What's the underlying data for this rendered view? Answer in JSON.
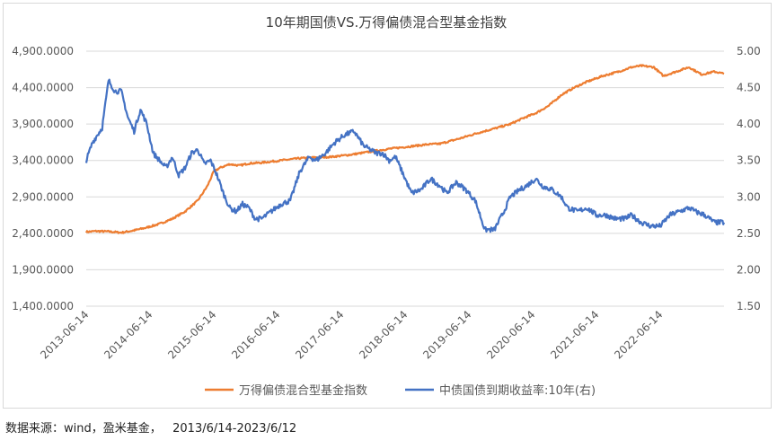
{
  "source_note": "数据来源：wind，盈米基金，   2013/6/14-2023/6/12",
  "colors": {
    "index_series": "#ed7d31",
    "yield_series": "#4472c4",
    "grid": "#d9d9d9",
    "text": "#595959"
  },
  "chart_data": {
    "type": "line",
    "title": "10年期国债VS.万得偏债混合型基金指数",
    "xlabel": "",
    "ylabel": "",
    "x_ticks": [
      "2013-06-14",
      "2014-06-14",
      "2015-06-14",
      "2016-06-14",
      "2017-06-14",
      "2018-06-14",
      "2019-06-14",
      "2020-06-14",
      "2021-06-14",
      "2022-06-14"
    ],
    "x_range": [
      2013.45,
      2023.45
    ],
    "y_left": {
      "ylim": [
        1400,
        4900
      ],
      "ticks": [
        "1,400.0000",
        "1,900.0000",
        "2,400.0000",
        "2,900.0000",
        "3,400.0000",
        "3,900.0000",
        "4,400.0000",
        "4,900.0000"
      ],
      "tick_values": [
        1400,
        1900,
        2400,
        2900,
        3400,
        3900,
        4400,
        4900
      ]
    },
    "y_right": {
      "ylim": [
        1.5,
        5.0
      ],
      "ticks": [
        "1.50",
        "2.00",
        "2.50",
        "3.00",
        "3.50",
        "4.00",
        "4.50",
        "5.00"
      ],
      "tick_values": [
        1.5,
        2.0,
        2.5,
        3.0,
        3.5,
        4.0,
        4.5,
        5.0
      ]
    },
    "grid": true,
    "legend": "bottom",
    "series": [
      {
        "name": "万得偏债混合型基金指数",
        "axis": "left",
        "x": [
          2013.45,
          2013.6,
          2013.8,
          2014.0,
          2014.2,
          2014.4,
          2014.6,
          2014.8,
          2015.0,
          2015.2,
          2015.35,
          2015.45,
          2015.55,
          2015.7,
          2015.85,
          2016.0,
          2016.2,
          2016.5,
          2016.8,
          2017.0,
          2017.3,
          2017.6,
          2017.9,
          2018.2,
          2018.5,
          2018.8,
          2019.0,
          2019.3,
          2019.6,
          2019.9,
          2020.1,
          2020.3,
          2020.5,
          2020.7,
          2020.9,
          2021.1,
          2021.3,
          2021.55,
          2021.8,
          2022.0,
          2022.15,
          2022.35,
          2022.5,
          2022.7,
          2022.9,
          2023.1,
          2023.3,
          2023.45
        ],
        "values": [
          2420,
          2430,
          2425,
          2410,
          2440,
          2480,
          2530,
          2600,
          2700,
          2850,
          3050,
          3250,
          3300,
          3350,
          3330,
          3360,
          3370,
          3400,
          3430,
          3440,
          3450,
          3480,
          3520,
          3560,
          3590,
          3620,
          3630,
          3700,
          3780,
          3850,
          3900,
          3980,
          4050,
          4150,
          4300,
          4400,
          4480,
          4560,
          4620,
          4680,
          4700,
          4680,
          4560,
          4620,
          4680,
          4580,
          4620,
          4590
        ]
      },
      {
        "name": "中债国债到期收益率:10年(右)",
        "axis": "right",
        "x": [
          2013.45,
          2013.55,
          2013.7,
          2013.8,
          2013.9,
          2014.0,
          2014.1,
          2014.2,
          2014.3,
          2014.4,
          2014.5,
          2014.6,
          2014.7,
          2014.8,
          2014.9,
          2015.0,
          2015.1,
          2015.2,
          2015.3,
          2015.4,
          2015.5,
          2015.6,
          2015.7,
          2015.8,
          2015.9,
          2016.0,
          2016.1,
          2016.2,
          2016.35,
          2016.5,
          2016.65,
          2016.8,
          2016.95,
          2017.05,
          2017.2,
          2017.35,
          2017.5,
          2017.65,
          2017.8,
          2017.9,
          2018.0,
          2018.1,
          2018.2,
          2018.3,
          2018.45,
          2018.55,
          2018.7,
          2018.85,
          2019.0,
          2019.1,
          2019.25,
          2019.4,
          2019.55,
          2019.7,
          2019.85,
          2020.0,
          2020.1,
          2020.25,
          2020.35,
          2020.5,
          2020.6,
          2020.75,
          2020.9,
          2021.0,
          2021.15,
          2021.3,
          2021.45,
          2021.6,
          2021.75,
          2021.9,
          2022.0,
          2022.15,
          2022.3,
          2022.45,
          2022.6,
          2022.75,
          2022.9,
          2023.0,
          2023.15,
          2023.3,
          2023.45
        ],
        "values": [
          3.5,
          3.75,
          3.95,
          4.6,
          4.45,
          4.45,
          4.1,
          3.9,
          4.2,
          4.0,
          3.6,
          3.5,
          3.4,
          3.55,
          3.3,
          3.4,
          3.6,
          3.65,
          3.45,
          3.5,
          3.3,
          3.05,
          2.85,
          2.8,
          2.9,
          2.85,
          2.7,
          2.7,
          2.8,
          2.9,
          2.95,
          3.35,
          3.55,
          3.5,
          3.6,
          3.75,
          3.85,
          3.9,
          3.7,
          3.65,
          3.6,
          3.6,
          3.5,
          3.55,
          3.25,
          3.05,
          3.1,
          3.25,
          3.15,
          3.05,
          3.2,
          3.1,
          2.95,
          2.55,
          2.55,
          2.8,
          3.0,
          3.1,
          3.15,
          3.25,
          3.15,
          3.1,
          3.0,
          2.85,
          2.8,
          2.85,
          2.75,
          2.75,
          2.7,
          2.7,
          2.75,
          2.65,
          2.6,
          2.6,
          2.75,
          2.8,
          2.85,
          2.8,
          2.75,
          2.65,
          2.65
        ]
      }
    ]
  }
}
